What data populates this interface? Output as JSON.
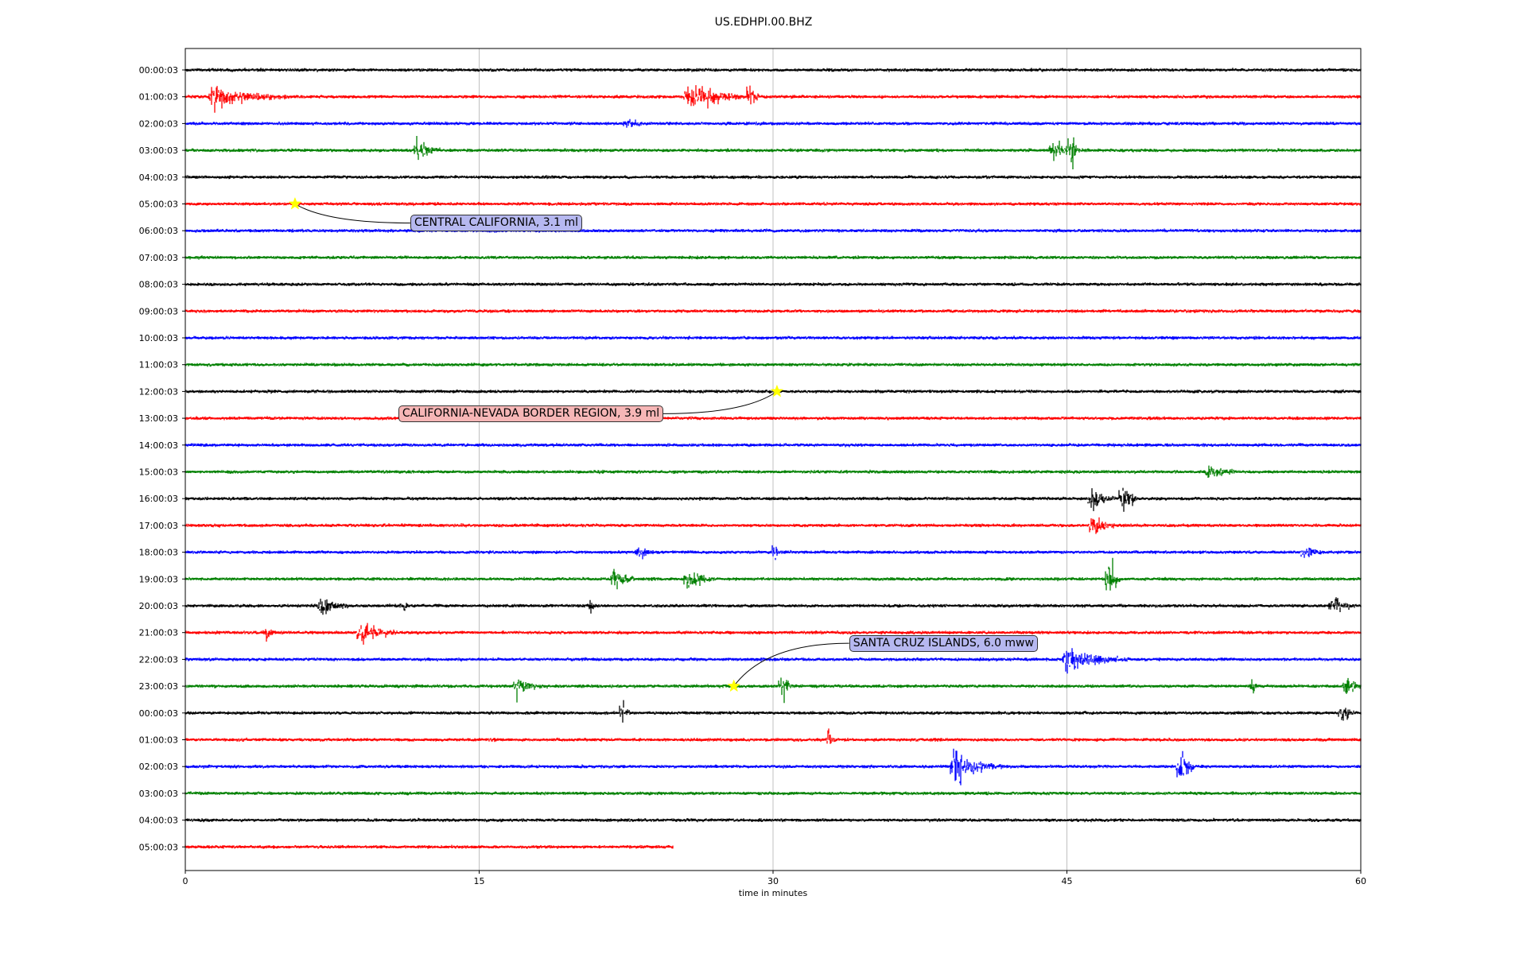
{
  "chart_data": {
    "type": "line",
    "title": "US.EDHPI.00.BHZ",
    "xlabel": "time in minutes",
    "ylabel": "",
    "xlim": [
      0,
      60
    ],
    "x_ticks": [
      "0",
      "15",
      "30",
      "45",
      "60"
    ],
    "grid": "vertical lines at each x tick",
    "trace_colors": [
      "#000000",
      "#ff0000",
      "#0000ff",
      "#008000"
    ],
    "row_labels": [
      "00:00:03",
      "01:00:03",
      "02:00:03",
      "03:00:03",
      "04:00:03",
      "05:00:03",
      "06:00:03",
      "07:00:03",
      "08:00:03",
      "09:00:03",
      "10:00:03",
      "11:00:03",
      "12:00:03",
      "13:00:03",
      "14:00:03",
      "15:00:03",
      "16:00:03",
      "17:00:03",
      "18:00:03",
      "19:00:03",
      "20:00:03",
      "21:00:03",
      "22:00:03",
      "23:00:03",
      "00:00:03",
      "01:00:03",
      "02:00:03",
      "03:00:03",
      "04:00:03",
      "05:00:03"
    ],
    "last_row_end_minute": 24.9,
    "events": [
      {
        "row": 1,
        "minute": 1.3,
        "amp": 0.4,
        "dur": 4
      },
      {
        "row": 1,
        "minute": 25.6,
        "amp": 0.5,
        "dur": 3.5
      },
      {
        "row": 1,
        "minute": 28.8,
        "amp": 0.8,
        "dur": 0.5
      },
      {
        "row": 2,
        "minute": 22.5,
        "amp": 0.2,
        "dur": 1.5
      },
      {
        "row": 3,
        "minute": 11.8,
        "amp": 0.45,
        "dur": 1.2
      },
      {
        "row": 3,
        "minute": 44.2,
        "amp": 0.35,
        "dur": 2
      },
      {
        "row": 3,
        "minute": 45.2,
        "amp": 1.0,
        "dur": 0.4
      },
      {
        "row": 15,
        "minute": 52.2,
        "amp": 0.3,
        "dur": 1.5
      },
      {
        "row": 16,
        "minute": 46.2,
        "amp": 0.4,
        "dur": 1.5
      },
      {
        "row": 16,
        "minute": 47.8,
        "amp": 0.7,
        "dur": 0.8
      },
      {
        "row": 17,
        "minute": 46.3,
        "amp": 0.4,
        "dur": 1.2
      },
      {
        "row": 18,
        "minute": 23.1,
        "amp": 0.3,
        "dur": 0.9
      },
      {
        "row": 18,
        "minute": 30.1,
        "amp": 0.55,
        "dur": 0.2
      },
      {
        "row": 18,
        "minute": 57.1,
        "amp": 0.3,
        "dur": 1.2
      },
      {
        "row": 19,
        "minute": 21.8,
        "amp": 0.4,
        "dur": 1.3
      },
      {
        "row": 19,
        "minute": 25.6,
        "amp": 0.45,
        "dur": 1.4
      },
      {
        "row": 19,
        "minute": 47.1,
        "amp": 0.9,
        "dur": 0.6
      },
      {
        "row": 20,
        "minute": 6.9,
        "amp": 0.4,
        "dur": 1.5
      },
      {
        "row": 20,
        "minute": 11.1,
        "amp": 0.3,
        "dur": 0.4
      },
      {
        "row": 20,
        "minute": 20.6,
        "amp": 0.3,
        "dur": 0.4
      },
      {
        "row": 20,
        "minute": 58.5,
        "amp": 0.35,
        "dur": 1.3
      },
      {
        "row": 21,
        "minute": 4.1,
        "amp": 0.3,
        "dur": 0.5
      },
      {
        "row": 21,
        "minute": 8.9,
        "amp": 0.45,
        "dur": 2.0
      },
      {
        "row": 22,
        "minute": 44.9,
        "amp": 0.45,
        "dur": 3.3
      },
      {
        "row": 23,
        "minute": 16.9,
        "amp": 0.35,
        "dur": 1.6
      },
      {
        "row": 23,
        "minute": 30.4,
        "amp": 0.5,
        "dur": 0.8
      },
      {
        "row": 23,
        "minute": 54.4,
        "amp": 0.5,
        "dur": 0.3
      },
      {
        "row": 23,
        "minute": 59.2,
        "amp": 0.45,
        "dur": 0.8
      },
      {
        "row": 24,
        "minute": 22.3,
        "amp": 0.5,
        "dur": 0.4
      },
      {
        "row": 24,
        "minute": 59.0,
        "amp": 0.35,
        "dur": 0.8
      },
      {
        "row": 25,
        "minute": 32.8,
        "amp": 0.45,
        "dur": 0.4
      },
      {
        "row": 26,
        "minute": 39.2,
        "amp": 0.7,
        "dur": 2.5
      },
      {
        "row": 26,
        "minute": 50.7,
        "amp": 1.0,
        "dur": 0.8
      }
    ],
    "annotations": [
      {
        "text": "CENTRAL CALIFORNIA, 3.1 ml",
        "row": 5,
        "minute": 5.6,
        "box_fill": "#b6b8f0",
        "box_side": "right"
      },
      {
        "text": "CALIFORNIA-NEVADA BORDER REGION, 3.9 ml",
        "row": 12,
        "minute": 30.2,
        "box_fill": "#f6b6b6",
        "box_side": "left"
      },
      {
        "text": "SANTA CRUZ ISLANDS, 6.0 mww",
        "row": 23,
        "minute": 28.0,
        "box_fill": "#b6b8f0",
        "box_side": "right"
      }
    ],
    "marker": {
      "shape": "star",
      "color": "#ffff00"
    }
  }
}
